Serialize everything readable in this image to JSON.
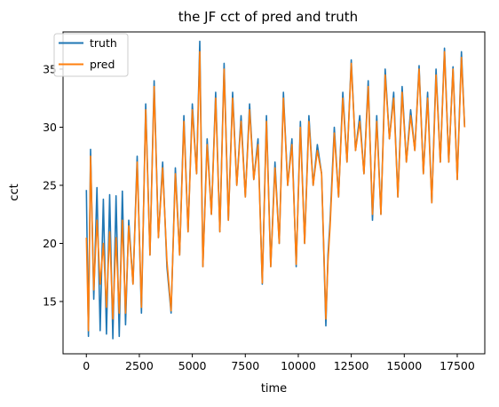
{
  "chart_data": {
    "type": "line",
    "title": "the JF cct of pred and truth",
    "xlabel": "time",
    "ylabel": "cct",
    "xlim": [
      -1100,
      18800
    ],
    "ylim": [
      10.5,
      38.2
    ],
    "xticks": [
      0,
      2500,
      5000,
      7500,
      10000,
      12500,
      15000,
      17500
    ],
    "yticks": [
      15,
      20,
      25,
      30,
      35
    ],
    "grid": false,
    "legend_position": "top-left",
    "series": [
      {
        "name": "truth",
        "color": "#1f77b4",
        "x": [
          0,
          100,
          200,
          350,
          500,
          650,
          800,
          950,
          1100,
          1250,
          1400,
          1550,
          1700,
          1850,
          2000,
          2200,
          2400,
          2600,
          2800,
          3000,
          3200,
          3400,
          3600,
          3800,
          4000,
          4200,
          4400,
          4600,
          4800,
          5000,
          5200,
          5350,
          5500,
          5700,
          5900,
          6100,
          6300,
          6500,
          6700,
          6900,
          7100,
          7300,
          7500,
          7700,
          7900,
          8100,
          8300,
          8500,
          8700,
          8900,
          9100,
          9300,
          9500,
          9700,
          9900,
          10100,
          10300,
          10500,
          10700,
          10900,
          11100,
          11300,
          11400,
          11500,
          11700,
          11900,
          12100,
          12300,
          12500,
          12700,
          12900,
          13100,
          13300,
          13500,
          13700,
          13900,
          14100,
          14300,
          14500,
          14700,
          14900,
          15100,
          15300,
          15500,
          15700,
          15900,
          16100,
          16300,
          16500,
          16700,
          16900,
          17100,
          17300,
          17500,
          17700,
          17850
        ],
        "y": [
          24.6,
          12.0,
          28.1,
          15.2,
          24.8,
          12.5,
          23.8,
          12.2,
          24.2,
          11.8,
          24.1,
          12.0,
          24.5,
          13.0,
          22.0,
          16.5,
          27.5,
          14.0,
          32.0,
          19.0,
          34.0,
          20.5,
          27.0,
          18.0,
          14.0,
          26.5,
          19.0,
          31.0,
          21.0,
          32.0,
          26.0,
          37.4,
          18.0,
          29.0,
          22.5,
          33.0,
          21.0,
          35.5,
          22.0,
          33.0,
          25.0,
          31.0,
          24.0,
          32.0,
          25.5,
          29.0,
          16.5,
          31.0,
          18.0,
          27.0,
          20.0,
          33.0,
          25.0,
          29.0,
          18.0,
          30.5,
          20.0,
          31.0,
          25.0,
          28.5,
          26.0,
          12.9,
          19.0,
          22.0,
          30.0,
          24.0,
          33.0,
          27.0,
          35.8,
          28.0,
          31.0,
          26.0,
          34.0,
          22.0,
          31.0,
          22.5,
          35.0,
          29.0,
          33.0,
          24.0,
          33.5,
          27.0,
          31.5,
          28.0,
          35.3,
          26.0,
          33.0,
          23.5,
          35.0,
          27.0,
          36.8,
          27.0,
          35.2,
          25.5,
          36.5,
          30.0
        ]
      },
      {
        "name": "pred",
        "color": "#ff7f0e",
        "x": [
          0,
          100,
          200,
          350,
          500,
          650,
          800,
          950,
          1100,
          1250,
          1400,
          1550,
          1700,
          1850,
          2000,
          2200,
          2400,
          2600,
          2800,
          3000,
          3200,
          3400,
          3600,
          3800,
          4000,
          4200,
          4400,
          4600,
          4800,
          5000,
          5200,
          5350,
          5500,
          5700,
          5900,
          6100,
          6300,
          6500,
          6700,
          6900,
          7100,
          7300,
          7500,
          7700,
          7900,
          8100,
          8300,
          8500,
          8700,
          8900,
          9100,
          9300,
          9500,
          9700,
          9900,
          10100,
          10300,
          10500,
          10700,
          10900,
          11100,
          11300,
          11400,
          11500,
          11700,
          11900,
          12100,
          12300,
          12500,
          12700,
          12900,
          13100,
          13300,
          13500,
          13700,
          13900,
          14100,
          14300,
          14500,
          14700,
          14900,
          15100,
          15300,
          15500,
          15700,
          15900,
          16100,
          16300,
          16500,
          16700,
          16900,
          17100,
          17300,
          17500,
          17700,
          17850
        ],
        "y": [
          20.5,
          12.5,
          27.5,
          16.0,
          22.0,
          16.5,
          20.0,
          14.5,
          21.0,
          13.5,
          20.5,
          14.0,
          22.0,
          14.0,
          21.5,
          16.5,
          27.0,
          14.5,
          31.5,
          19.0,
          33.5,
          20.5,
          26.5,
          18.5,
          14.2,
          26.0,
          19.0,
          30.5,
          21.0,
          31.5,
          26.0,
          36.5,
          18.0,
          28.5,
          22.5,
          32.5,
          21.0,
          35.0,
          22.0,
          32.5,
          25.0,
          30.5,
          24.0,
          31.5,
          25.5,
          28.5,
          16.6,
          30.5,
          18.0,
          26.5,
          20.0,
          32.5,
          25.0,
          28.5,
          18.2,
          30.0,
          20.0,
          30.5,
          25.0,
          28.0,
          26.0,
          13.5,
          18.5,
          21.5,
          29.5,
          24.0,
          32.5,
          27.0,
          35.5,
          28.0,
          30.5,
          26.0,
          33.5,
          22.5,
          30.5,
          22.5,
          34.5,
          29.0,
          32.5,
          24.0,
          33.0,
          27.0,
          31.0,
          28.0,
          35.0,
          26.0,
          32.5,
          23.5,
          34.5,
          27.0,
          36.5,
          27.0,
          35.0,
          25.5,
          36.0,
          30.0
        ]
      }
    ]
  }
}
